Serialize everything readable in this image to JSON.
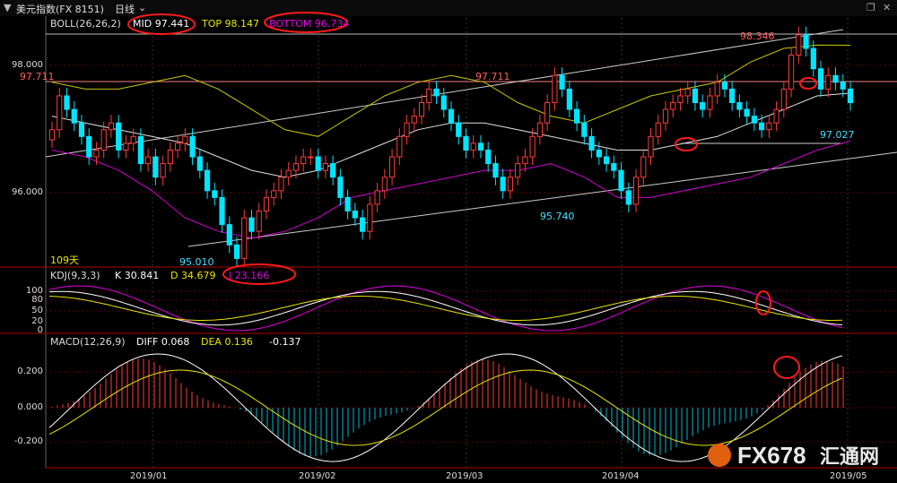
{
  "title_bar": {
    "instrument": "美元指数(FX 8151)",
    "period": "日线",
    "dropdown_icon": "chevron-down-icon",
    "restore_icon": "window-restore-icon",
    "close_icon": "window-close-icon"
  },
  "boll_panel": {
    "name": "BOLL(26,26,2)",
    "mid_label": "MID 97.441",
    "top_label": "TOP 98.147",
    "bottom_label": "BOTTOM 96.734",
    "y_ticks": [
      "98.000",
      "96.000"
    ],
    "annotations": [
      "98.346",
      "97.711",
      "97.711",
      "95.740",
      "95.010",
      "97.027"
    ],
    "days_label": "109天"
  },
  "kdj_panel": {
    "name": "KDJ(9,3,3)",
    "k_label": "K 30.841",
    "d_label": "D 34.679",
    "j_label": "J 23.166",
    "y_ticks": [
      "100",
      "80",
      "50",
      "20",
      "0"
    ]
  },
  "macd_panel": {
    "name": "MACD(12,26,9)",
    "diff_label": "DIFF 0.068",
    "dea_label": "DEA 0.136",
    "macd_label": "-0.137",
    "y_ticks": [
      "0.200",
      "0.000",
      "-0.200"
    ]
  },
  "x_axis": {
    "ticks": [
      "2019/01",
      "2019/02",
      "2019/03",
      "2019/04",
      "2019/05"
    ]
  },
  "watermark": {
    "text": "FX678",
    "text2": "汇通网"
  },
  "colors": {
    "up": "#ff3b3b",
    "down": "#00e5ff",
    "mid": "#e0e0e0",
    "top": "#c8c800",
    "bottom": "#d000d0",
    "k": "#ffffff",
    "d": "#e6e600",
    "j": "#e000e0",
    "highlight": "#ff2020"
  },
  "chart_data": {
    "type": "candlestick",
    "x_axis_labels": [
      "2019/01",
      "2019/02",
      "2019/03",
      "2019/04",
      "2019/05"
    ],
    "y_range": [
      94.9,
      98.55
    ],
    "candles_close": [
      96.9,
      97.4,
      97.2,
      97.0,
      96.8,
      96.5,
      96.6,
      96.9,
      97.0,
      96.6,
      96.7,
      96.8,
      96.4,
      96.5,
      96.2,
      96.4,
      96.6,
      96.7,
      96.8,
      96.5,
      96.3,
      96.0,
      95.9,
      95.5,
      95.2,
      95.0,
      95.6,
      95.4,
      95.7,
      95.9,
      96.0,
      96.2,
      96.3,
      96.4,
      96.5,
      96.5,
      96.3,
      96.4,
      96.2,
      95.9,
      95.7,
      95.6,
      95.4,
      95.8,
      96.0,
      96.2,
      96.5,
      96.8,
      97.0,
      97.1,
      97.3,
      97.5,
      97.4,
      97.2,
      97.0,
      96.8,
      96.6,
      96.7,
      96.6,
      96.4,
      96.2,
      96.0,
      96.2,
      96.4,
      96.5,
      96.8,
      97.0,
      97.3,
      97.7,
      97.5,
      97.2,
      97.0,
      96.8,
      96.6,
      96.5,
      96.4,
      96.3,
      96.0,
      95.8,
      96.2,
      96.5,
      96.8,
      97.0,
      97.2,
      97.3,
      97.4,
      97.5,
      97.3,
      97.2,
      97.4,
      97.6,
      97.5,
      97.3,
      97.2,
      97.1,
      97.0,
      96.9,
      97.0,
      97.2,
      97.5,
      98.0,
      98.3,
      98.1,
      97.8,
      97.5,
      97.7,
      97.6,
      97.5,
      97.3
    ],
    "series": [
      {
        "name": "MID",
        "values": [
          97.1,
          97.0,
          96.9,
          96.8,
          96.7,
          96.5,
          96.3,
          96.2,
          96.3,
          96.5,
          96.7,
          96.9,
          97.0,
          97.0,
          96.9,
          96.8,
          96.7,
          96.6,
          96.6,
          96.7,
          96.8,
          97.0,
          97.2,
          97.4,
          97.44
        ]
      },
      {
        "name": "TOP",
        "values": [
          97.6,
          97.5,
          97.5,
          97.6,
          97.7,
          97.5,
          97.2,
          96.9,
          96.8,
          97.1,
          97.4,
          97.6,
          97.7,
          97.6,
          97.3,
          97.1,
          97.0,
          97.2,
          97.4,
          97.5,
          97.6,
          97.9,
          98.1,
          98.15,
          98.147
        ]
      },
      {
        "name": "BOTTOM",
        "values": [
          96.6,
          96.5,
          96.3,
          96.0,
          95.6,
          95.4,
          95.3,
          95.4,
          95.6,
          95.9,
          96.0,
          96.1,
          96.2,
          96.3,
          96.3,
          96.4,
          96.2,
          95.9,
          95.9,
          96.0,
          96.1,
          96.2,
          96.4,
          96.6,
          96.734
        ]
      }
    ]
  }
}
